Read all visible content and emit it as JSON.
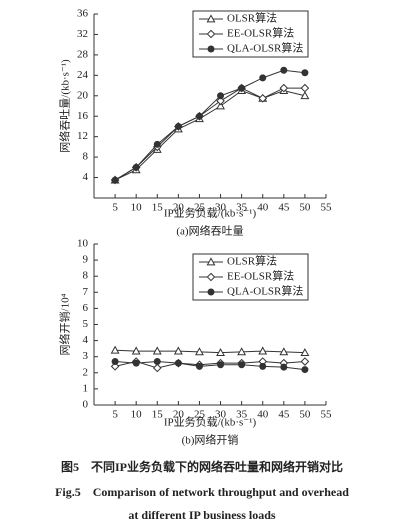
{
  "chart_data": [
    {
      "type": "line",
      "caption": "(a)网络吞吐量",
      "x_label": "IP业务负载/(kb·s⁻¹)",
      "y_label": "网络吞吐量/(kb·s⁻¹)",
      "x": [
        5,
        10,
        15,
        20,
        25,
        30,
        35,
        40,
        45,
        50
      ],
      "series": [
        {
          "name": "OLSR算法",
          "color": "#333333",
          "marker": "triangle",
          "values": [
            3.5,
            5.5,
            9.5,
            13.5,
            15.5,
            18,
            21,
            19.5,
            21,
            20
          ]
        },
        {
          "name": "EE-OLSR算法",
          "color": "#333333",
          "marker": "diamond",
          "values": [
            3.5,
            6,
            10,
            14,
            16,
            19,
            21.5,
            19.5,
            21.5,
            21.5
          ]
        },
        {
          "name": "QLA-OLSR算法",
          "color": "#333333",
          "marker": "circle",
          "values": [
            3.5,
            6,
            10.5,
            14,
            16,
            20,
            21.5,
            23.5,
            25,
            24.5
          ]
        }
      ],
      "xlim": [
        0,
        55
      ],
      "ylim": [
        0,
        36
      ],
      "xticks": [
        5,
        10,
        15,
        20,
        25,
        30,
        35,
        40,
        45,
        50,
        55
      ],
      "yticks": [
        4,
        8,
        12,
        16,
        20,
        24,
        28,
        32,
        36
      ],
      "legend": "top",
      "grid": false
    },
    {
      "type": "line",
      "caption": "(b)网络开销",
      "x_label": "IP业务负载/(kb·s⁻¹)",
      "y_label": "网络开销/10⁴",
      "x": [
        5,
        10,
        15,
        20,
        25,
        30,
        35,
        40,
        45,
        50
      ],
      "series": [
        {
          "name": "OLSR算法",
          "color": "#333333",
          "marker": "triangle",
          "values": [
            3.4,
            3.35,
            3.35,
            3.35,
            3.3,
            3.25,
            3.3,
            3.35,
            3.3,
            3.25
          ]
        },
        {
          "name": "EE-OLSR算法",
          "color": "#333333",
          "marker": "diamond",
          "values": [
            2.4,
            2.7,
            2.3,
            2.6,
            2.5,
            2.6,
            2.6,
            2.7,
            2.6,
            2.7
          ]
        },
        {
          "name": "QLA-OLSR算法",
          "color": "#333333",
          "marker": "circle",
          "values": [
            2.7,
            2.6,
            2.7,
            2.6,
            2.4,
            2.5,
            2.5,
            2.4,
            2.35,
            2.2
          ]
        }
      ],
      "xlim": [
        0,
        55
      ],
      "ylim": [
        0,
        10
      ],
      "xticks": [
        5,
        10,
        15,
        20,
        25,
        30,
        35,
        40,
        45,
        50,
        55
      ],
      "yticks": [
        0,
        1,
        2,
        3,
        4,
        5,
        6,
        7,
        8,
        9,
        10
      ],
      "legend": "top",
      "grid": false
    }
  ],
  "figure_caption": {
    "zh": "图5　不同IP业务负载下的网络吞吐量和网络开销对比",
    "en_line1": "Fig.5　Comparison of network throughput and overhead",
    "en_line2": "at different IP business loads"
  }
}
